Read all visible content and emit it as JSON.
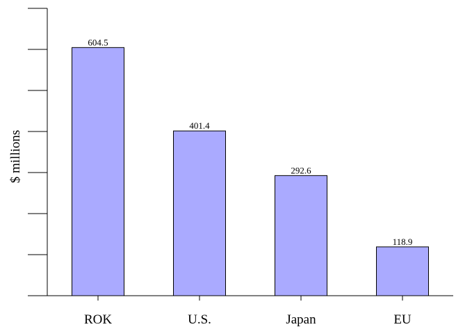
{
  "chart_data": {
    "type": "bar",
    "title": "",
    "xlabel": "",
    "ylabel": "$ millions",
    "categories": [
      "ROK",
      "U.S.",
      "Japan",
      "EU"
    ],
    "values": [
      604.5,
      401.4,
      292.6,
      118.9
    ],
    "value_labels": [
      "604.5",
      "401.4",
      "292.6",
      "118.9"
    ],
    "ylim": [
      0,
      700
    ],
    "ytick_values": [
      0,
      100,
      200,
      300,
      400,
      500,
      600,
      700
    ],
    "grid": false,
    "bar_color": "#aaaaff",
    "bar_edge_color": "#000000"
  }
}
